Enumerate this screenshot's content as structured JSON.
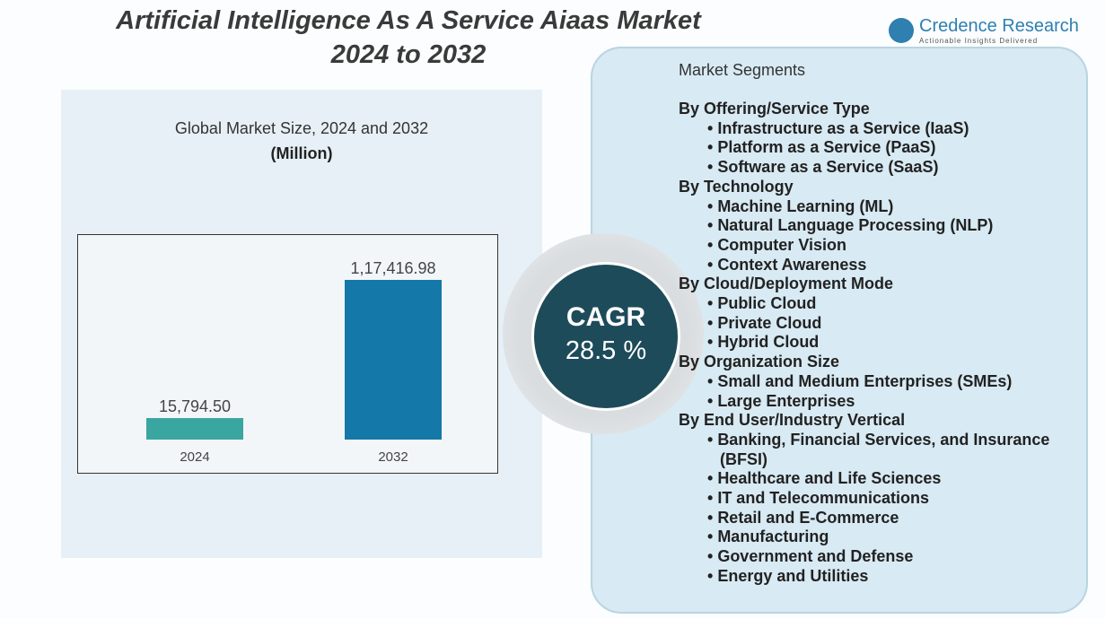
{
  "title": [
    "Artificial Intelligence As A Service Aiaas Market",
    "2024 to 2032"
  ],
  "logo": {
    "name": "Credence Research",
    "tagline": "Actionable Insights Delivered"
  },
  "chart_data": {
    "type": "bar",
    "title": "Global Market Size, 2024 and 2032",
    "subtitle": "(Million)",
    "categories": [
      "2024",
      "2032"
    ],
    "values": [
      15794.5,
      117416.98
    ],
    "value_labels": [
      "15,794.50",
      "1,17,416.98"
    ],
    "colors": [
      "#3aa6a0",
      "#1479a8"
    ],
    "ylim": [
      0,
      150000
    ]
  },
  "cagr": {
    "label": "CAGR",
    "value": "28.5 %"
  },
  "segments": {
    "heading": "Market Segments",
    "groups": [
      {
        "name": "By Offering/Service Type",
        "items": [
          "Infrastructure as a Service (IaaS)",
          "Platform as a Service (PaaS)",
          "Software as a Service (SaaS)"
        ]
      },
      {
        "name": "By Technology",
        "items": [
          "Machine Learning (ML)",
          "Natural Language Processing (NLP)",
          "Computer Vision",
          "Context Awareness"
        ]
      },
      {
        "name": "By Cloud/Deployment Mode",
        "items": [
          "Public Cloud",
          "Private Cloud",
          "Hybrid Cloud"
        ]
      },
      {
        "name": "By Organization Size",
        "items": [
          "Small and Medium Enterprises (SMEs)",
          "Large Enterprises"
        ]
      },
      {
        "name": "By End User/Industry Vertical",
        "items": [
          "Banking, Financial Services, and Insurance (BFSI)",
          "Healthcare and Life Sciences",
          "IT and Telecommunications",
          "Retail and E-Commerce",
          "Manufacturing",
          "Government and Defense",
          "Energy and Utilities"
        ]
      }
    ]
  }
}
